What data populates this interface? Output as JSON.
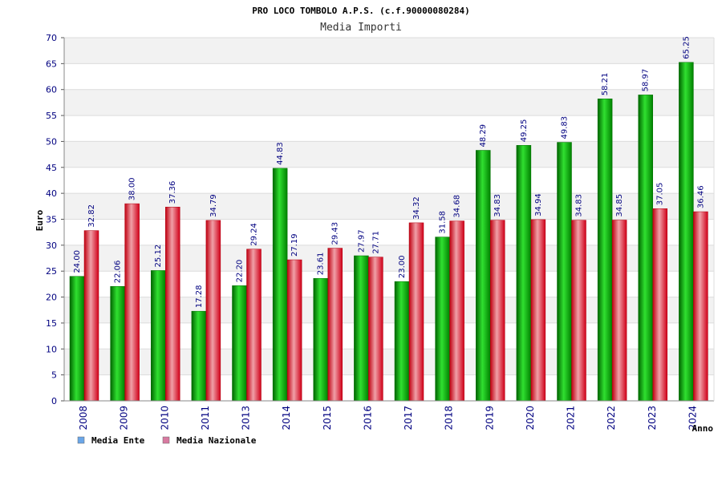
{
  "chart_data": {
    "type": "bar",
    "title": "PRO LOCO TOMBOLO A.P.S. (c.f.90000080284)",
    "subtitle": "Media Importi",
    "ylabel": "Euro",
    "xlabel": "Anno",
    "ylim": [
      0,
      70
    ],
    "yticks": [
      0,
      5,
      10,
      15,
      20,
      25,
      30,
      35,
      40,
      45,
      50,
      55,
      60,
      65,
      70
    ],
    "categories": [
      "2008",
      "2009",
      "2010",
      "2011",
      "2013",
      "2014",
      "2015",
      "2016",
      "2017",
      "2018",
      "2019",
      "2020",
      "2021",
      "2022",
      "2023",
      "2024"
    ],
    "series": [
      {
        "name": "Media Ente",
        "color": "#00b000",
        "legend_color": "#6aa6e8",
        "values": [
          24.0,
          22.06,
          25.12,
          17.28,
          22.2,
          44.83,
          23.61,
          27.97,
          23.0,
          31.58,
          48.29,
          49.25,
          49.83,
          58.21,
          58.97,
          65.25
        ],
        "labels": [
          "24.00",
          "22.06",
          "25.12",
          "17.28",
          "22.20",
          "44.83",
          "23.61",
          "27.97",
          "23.00",
          "31.58",
          "48.29",
          "49.25",
          "49.83",
          "58.21",
          "58.97",
          "65.25"
        ]
      },
      {
        "name": "Media Nazionale",
        "color": "#e01020",
        "legend_color": "#d87aa0",
        "values": [
          32.82,
          38.0,
          37.36,
          34.79,
          29.24,
          27.19,
          29.43,
          27.71,
          34.32,
          34.68,
          34.83,
          34.94,
          34.83,
          34.85,
          37.05,
          36.46
        ],
        "labels": [
          "32.82",
          "38.00",
          "37.36",
          "34.79",
          "29.24",
          "27.19",
          "29.43",
          "27.71",
          "34.32",
          "34.68",
          "34.83",
          "34.94",
          "34.83",
          "34.85",
          "37.05",
          "36.46"
        ]
      }
    ],
    "legend_position": "bottom-left",
    "grid": true
  }
}
